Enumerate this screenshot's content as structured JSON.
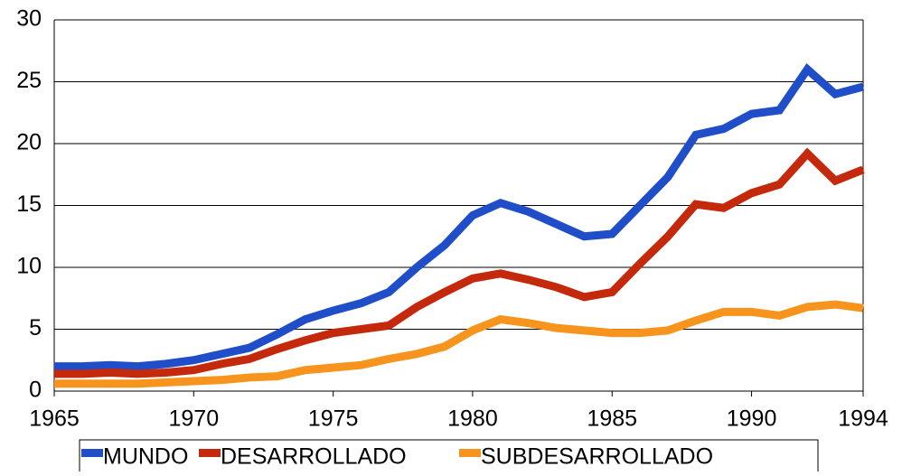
{
  "chart_data": {
    "type": "line",
    "x": [
      1965,
      1966,
      1967,
      1968,
      1969,
      1970,
      1971,
      1972,
      1973,
      1974,
      1975,
      1976,
      1977,
      1978,
      1979,
      1980,
      1981,
      1982,
      1983,
      1984,
      1985,
      1986,
      1987,
      1988,
      1989,
      1990,
      1991,
      1992,
      1993,
      1994
    ],
    "series": [
      {
        "name": "MUNDO",
        "color": "#1f4ec8",
        "values": [
          2.0,
          2.0,
          2.1,
          2.0,
          2.2,
          2.5,
          3.0,
          3.5,
          4.6,
          5.8,
          6.5,
          7.1,
          8.0,
          10.0,
          11.8,
          14.2,
          15.2,
          14.5,
          13.5,
          12.5,
          12.7,
          15.0,
          17.3,
          20.7,
          21.2,
          22.4,
          22.7,
          26.0,
          24.0,
          24.6
        ]
      },
      {
        "name": "DESARROLLADO",
        "color": "#c4290c",
        "values": [
          1.4,
          1.4,
          1.5,
          1.4,
          1.5,
          1.7,
          2.2,
          2.6,
          3.4,
          4.1,
          4.7,
          5.0,
          5.3,
          6.8,
          8.0,
          9.1,
          9.5,
          9.0,
          8.4,
          7.6,
          8.0,
          10.3,
          12.5,
          15.1,
          14.8,
          16.0,
          16.7,
          19.2,
          17.0,
          17.9
        ]
      },
      {
        "name": "SUBDESARROLLADO",
        "color": "#f7941d",
        "values": [
          0.6,
          0.6,
          0.6,
          0.6,
          0.7,
          0.8,
          0.9,
          1.1,
          1.2,
          1.7,
          1.9,
          2.1,
          2.6,
          3.0,
          3.6,
          4.9,
          5.8,
          5.5,
          5.1,
          4.9,
          4.7,
          4.7,
          4.9,
          5.7,
          6.4,
          6.4,
          6.1,
          6.8,
          7.0,
          6.7
        ]
      }
    ],
    "xlim": [
      1965,
      1994
    ],
    "xticks": [
      1965,
      1970,
      1975,
      1980,
      1985,
      1990,
      1994
    ],
    "ylim": [
      0,
      30
    ],
    "yticks": [
      0,
      5,
      10,
      15,
      20,
      25,
      30
    ],
    "grid": true,
    "legend": "bottom"
  }
}
